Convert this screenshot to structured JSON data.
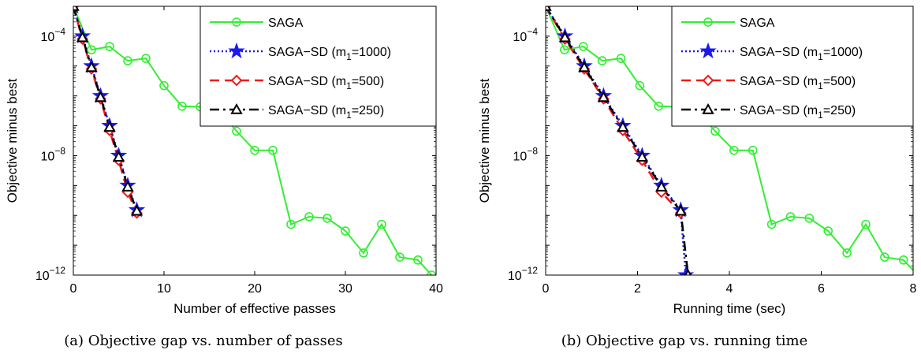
{
  "chart_data": [
    {
      "type": "line",
      "caption": "(a) Objective gap vs. number of passes",
      "xlabel": "Number of effective passes",
      "ylabel": "Objective minus best",
      "xlim": [
        0,
        40
      ],
      "ylim": [
        1e-12,
        0.001
      ],
      "yscale": "log",
      "grid": false,
      "legend_position": "top-right",
      "xticks": [
        {
          "v": 0,
          "label": "0"
        },
        {
          "v": 10,
          "label": "10"
        },
        {
          "v": 20,
          "label": "20"
        },
        {
          "v": 30,
          "label": "30"
        },
        {
          "v": 40,
          "label": "40"
        }
      ],
      "yticks": [
        {
          "v": 1e-12,
          "base": "10",
          "exp": "−12"
        },
        {
          "v": 1e-08,
          "base": "10",
          "exp": "−8"
        },
        {
          "v": 0.0001,
          "base": "10",
          "exp": "−4"
        }
      ],
      "series": [
        {
          "label": "SAGA",
          "label_main": "SAGA",
          "label_sub": "",
          "label_tail": "",
          "color": "#33ee33",
          "dash": "solid",
          "marker": "circle",
          "x": [
            0,
            2,
            4,
            6,
            8,
            10,
            12,
            14,
            16,
            18,
            20,
            22,
            24,
            26,
            28,
            30,
            32,
            34,
            36,
            38,
            39.5
          ],
          "y": [
            0.001,
            3.5e-05,
            4.5e-05,
            1.5e-05,
            1.8e-05,
            2.2e-06,
            4.5e-07,
            4.3e-07,
            3.4e-07,
            6.6e-08,
            1.5e-08,
            1.5e-08,
            5e-11,
            9e-11,
            8e-11,
            3e-11,
            5.5e-12,
            5e-11,
            4e-12,
            3.2e-12,
            1e-12
          ]
        },
        {
          "label": "SAGA−SD (m1=1000)",
          "label_main": "SAGA−SD (m",
          "label_sub": "1",
          "label_tail": "=1000)",
          "color": "#1a1aee",
          "dash": "dotted",
          "marker": "star",
          "x": [
            0,
            1,
            2,
            3,
            4,
            5,
            6,
            7
          ],
          "y": [
            0.001,
            0.0001,
            1e-05,
            1e-06,
            1e-07,
            1e-08,
            1e-09,
            1.5e-10
          ]
        },
        {
          "label": "SAGA−SD (m1=500)",
          "label_main": "SAGA−SD (m",
          "label_sub": "1",
          "label_tail": "=500)",
          "color": "#ee1a1a",
          "dash": "dashed",
          "marker": "diamond",
          "x": [
            0,
            1,
            2,
            3,
            4,
            5,
            6,
            7
          ],
          "y": [
            0.001,
            8e-05,
            8e-06,
            8e-07,
            7e-08,
            7e-09,
            6e-10,
            1.2e-10
          ]
        },
        {
          "label": "SAGA−SD (m1=250)",
          "label_main": "SAGA−SD (m",
          "label_sub": "1",
          "label_tail": "=250)",
          "color": "#000000",
          "dash": "dashdot",
          "marker": "triangle",
          "x": [
            0,
            1,
            2,
            3,
            4,
            5,
            6,
            7
          ],
          "y": [
            0.001,
            9e-05,
            9e-06,
            9e-07,
            9e-08,
            9e-09,
            9e-10,
            1.4e-10
          ]
        }
      ]
    },
    {
      "type": "line",
      "caption": "(b) Objective gap vs. running time",
      "xlabel": "Running time (sec)",
      "ylabel": "Objective minus best",
      "xlim": [
        0,
        8
      ],
      "ylim": [
        1e-12,
        0.001
      ],
      "yscale": "log",
      "grid": false,
      "legend_position": "top-right",
      "xticks": [
        {
          "v": 0,
          "label": "0"
        },
        {
          "v": 2,
          "label": "2"
        },
        {
          "v": 4,
          "label": "4"
        },
        {
          "v": 6,
          "label": "6"
        },
        {
          "v": 8,
          "label": "8"
        }
      ],
      "yticks": [
        {
          "v": 1e-12,
          "base": "10",
          "exp": "−12"
        },
        {
          "v": 1e-08,
          "base": "10",
          "exp": "−8"
        },
        {
          "v": 0.0001,
          "base": "10",
          "exp": "−4"
        }
      ],
      "series": [
        {
          "label": "SAGA",
          "label_main": "SAGA",
          "label_sub": "",
          "label_tail": "",
          "color": "#33ee33",
          "dash": "solid",
          "marker": "circle",
          "x": [
            0,
            0.41,
            0.82,
            1.23,
            1.64,
            2.05,
            2.46,
            2.87,
            3.28,
            3.69,
            4.1,
            4.51,
            4.92,
            5.33,
            5.74,
            6.15,
            6.56,
            6.97,
            7.38,
            7.79,
            8.1
          ],
          "y": [
            0.001,
            3.5e-05,
            4.5e-05,
            1.5e-05,
            1.8e-05,
            2.2e-06,
            4.5e-07,
            4.3e-07,
            3.4e-07,
            6.6e-08,
            1.5e-08,
            1.5e-08,
            5e-11,
            9e-11,
            8e-11,
            3e-11,
            5.5e-12,
            5e-11,
            4e-12,
            3.2e-12,
            1e-12
          ]
        },
        {
          "label": "SAGA−SD (m1=1000)",
          "label_main": "SAGA−SD (m",
          "label_sub": "1",
          "label_tail": "=1000)",
          "color": "#1a1aee",
          "dash": "dotted",
          "marker": "star",
          "x": [
            0,
            0.42,
            0.84,
            1.26,
            1.68,
            2.1,
            2.52,
            2.94,
            3.05
          ],
          "y": [
            0.001,
            0.0001,
            1e-05,
            1e-06,
            1e-07,
            1e-08,
            1e-09,
            1.5e-10,
            1e-12
          ]
        },
        {
          "label": "SAGA−SD (m1=500)",
          "label_main": "SAGA−SD (m",
          "label_sub": "1",
          "label_tail": "=500)",
          "color": "#ee1a1a",
          "dash": "dashed",
          "marker": "diamond",
          "x": [
            0,
            0.42,
            0.84,
            1.26,
            1.68,
            2.1,
            2.52,
            2.94
          ],
          "y": [
            0.001,
            8e-05,
            8e-06,
            8e-07,
            7e-08,
            7e-09,
            6e-10,
            1.2e-10
          ]
        },
        {
          "label": "SAGA−SD (m1=250)",
          "label_main": "SAGA−SD (m",
          "label_sub": "1",
          "label_tail": "=250)",
          "color": "#000000",
          "dash": "dashdot",
          "marker": "triangle",
          "x": [
            0,
            0.42,
            0.84,
            1.26,
            1.68,
            2.1,
            2.52,
            2.94,
            3.1
          ],
          "y": [
            0.001,
            9e-05,
            9e-06,
            9e-07,
            9e-08,
            9e-09,
            9e-10,
            1.4e-10,
            1e-12
          ]
        }
      ]
    }
  ]
}
